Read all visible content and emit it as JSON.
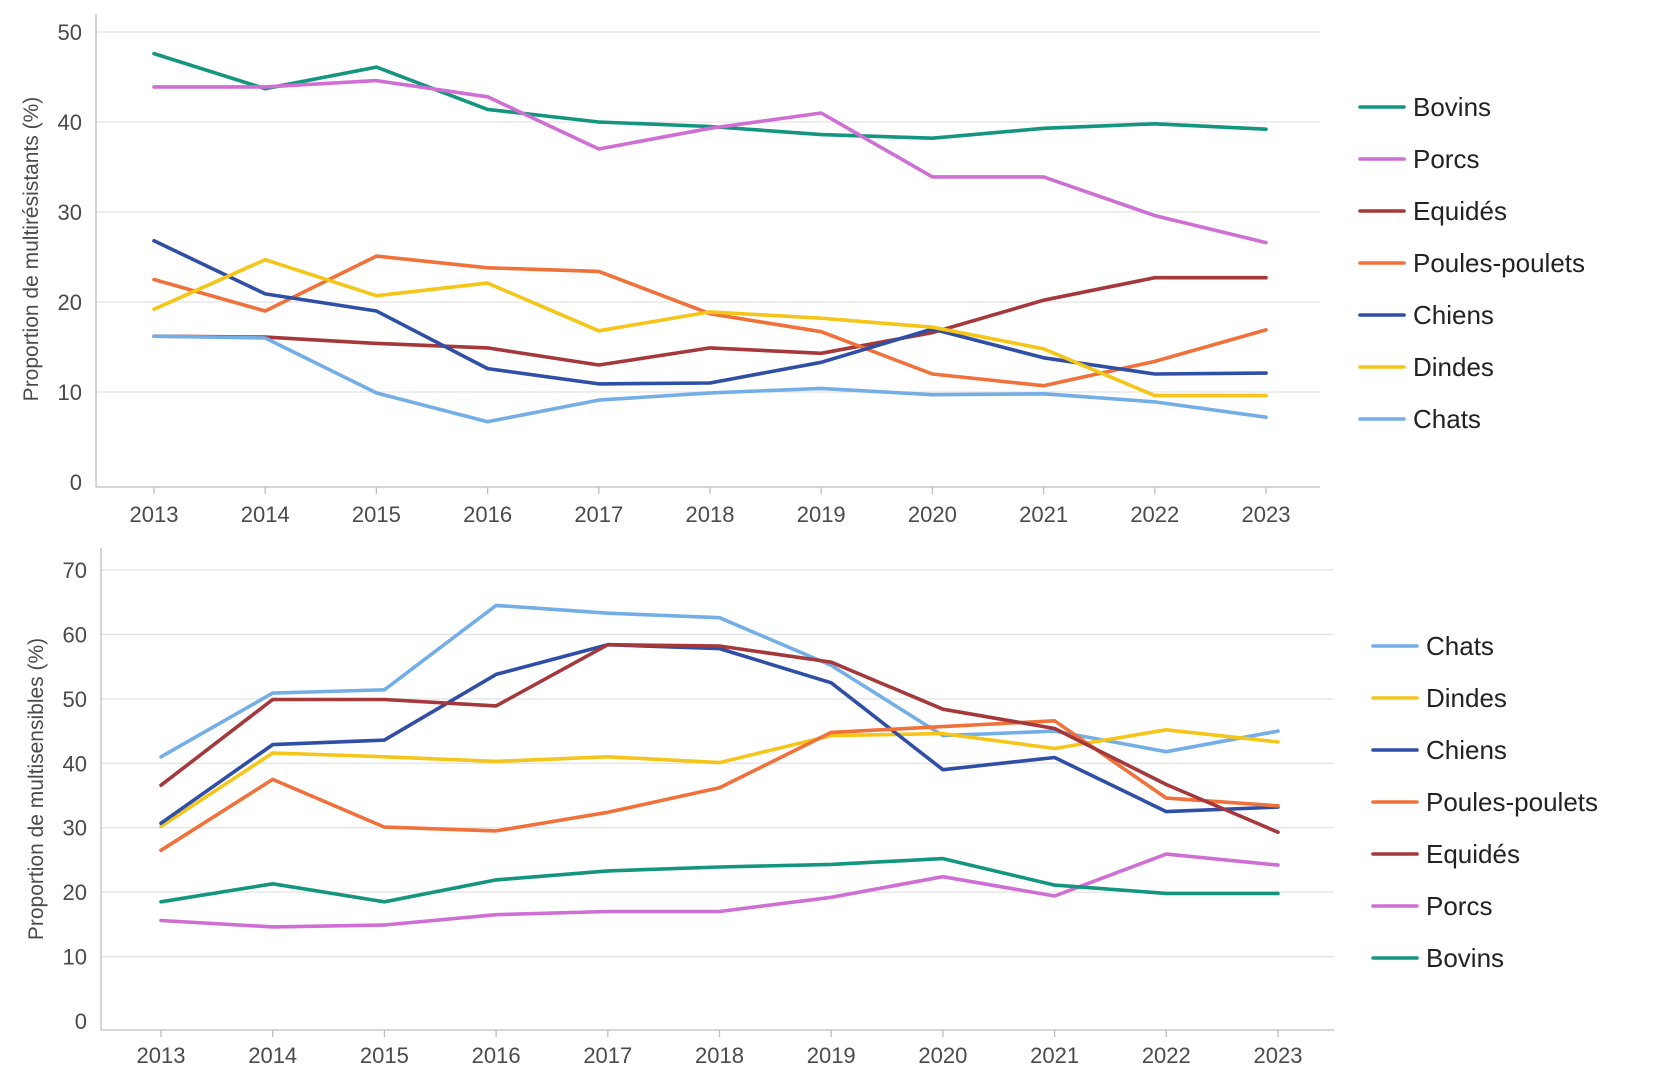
{
  "colors": {
    "Bovins": "#14957f",
    "Porcs": "#cf6fd4",
    "Equidés": "#a5383a",
    "Poules-poulets": "#f0713a",
    "Chiens": "#2f4fa6",
    "Dindes": "#f5c518",
    "Chats": "#74aee6"
  },
  "chart_data": [
    {
      "type": "line",
      "ylabel": "Proportion de multirésistants (%)",
      "xlabel": "",
      "x": [
        2013,
        2014,
        2015,
        2016,
        2017,
        2018,
        2019,
        2020,
        2021,
        2022,
        2023
      ],
      "ylim": [
        0,
        50
      ],
      "yticks": [
        0,
        10,
        20,
        30,
        40,
        50
      ],
      "grid": "horizontal",
      "legend_position": "right",
      "legend_order": [
        "Bovins",
        "Porcs",
        "Equidés",
        "Poules-poulets",
        "Chiens",
        "Dindes",
        "Chats"
      ],
      "series": [
        {
          "name": "Bovins",
          "values": [
            47.6,
            43.7,
            46.1,
            41.4,
            40.0,
            39.5,
            38.6,
            38.2,
            39.3,
            39.8,
            39.2
          ]
        },
        {
          "name": "Porcs",
          "values": [
            43.9,
            43.9,
            44.6,
            42.8,
            37.0,
            39.3,
            41.0,
            33.9,
            33.9,
            29.6,
            26.6
          ]
        },
        {
          "name": "Equidés",
          "values": [
            16.2,
            16.1,
            15.4,
            14.9,
            13.0,
            14.9,
            14.3,
            16.6,
            20.2,
            22.7,
            22.7
          ]
        },
        {
          "name": "Poules-poulets",
          "values": [
            22.5,
            19.0,
            25.1,
            23.8,
            23.4,
            18.7,
            16.7,
            12.0,
            10.7,
            13.4,
            16.9
          ]
        },
        {
          "name": "Chiens",
          "values": [
            26.8,
            20.9,
            19.0,
            12.6,
            10.9,
            11.0,
            13.3,
            17.0,
            13.8,
            12.0,
            12.1
          ]
        },
        {
          "name": "Dindes",
          "values": [
            19.2,
            24.7,
            20.7,
            22.1,
            16.8,
            18.9,
            18.2,
            17.2,
            14.8,
            9.6,
            9.6
          ]
        },
        {
          "name": "Chats",
          "values": [
            16.2,
            16.0,
            9.9,
            6.7,
            9.1,
            9.9,
            10.4,
            9.7,
            9.8,
            8.9,
            7.2
          ]
        }
      ]
    },
    {
      "type": "line",
      "ylabel": "Proportion de multisensibles (%)",
      "xlabel": "",
      "x": [
        2013,
        2014,
        2015,
        2016,
        2017,
        2018,
        2019,
        2020,
        2021,
        2022,
        2023
      ],
      "ylim": [
        0,
        70
      ],
      "yticks": [
        0,
        10,
        20,
        30,
        40,
        50,
        60,
        70
      ],
      "grid": "horizontal",
      "legend_position": "right",
      "legend_order": [
        "Chats",
        "Dindes",
        "Chiens",
        "Poules-poulets",
        "Equidés",
        "Porcs",
        "Bovins"
      ],
      "series": [
        {
          "name": "Chats",
          "values": [
            41.0,
            50.9,
            51.4,
            64.5,
            63.3,
            62.6,
            55.2,
            44.3,
            45.0,
            41.8,
            45.0
          ]
        },
        {
          "name": "Dindes",
          "values": [
            30.2,
            41.6,
            41.0,
            40.3,
            41.0,
            40.1,
            44.3,
            44.6,
            42.3,
            45.2,
            43.3
          ]
        },
        {
          "name": "Chiens",
          "values": [
            30.7,
            42.9,
            43.6,
            53.8,
            58.4,
            57.8,
            52.5,
            39.0,
            40.9,
            32.5,
            33.2
          ]
        },
        {
          "name": "Poules-poulets",
          "values": [
            26.5,
            37.5,
            30.1,
            29.5,
            32.4,
            36.2,
            44.8,
            45.7,
            46.6,
            34.6,
            33.4
          ]
        },
        {
          "name": "Equidés",
          "values": [
            36.6,
            49.9,
            49.9,
            48.9,
            58.4,
            58.2,
            55.7,
            48.4,
            45.4,
            36.7,
            29.3
          ]
        },
        {
          "name": "Porcs",
          "values": [
            15.6,
            14.6,
            14.9,
            16.5,
            17.0,
            17.0,
            19.2,
            22.4,
            19.4,
            25.9,
            24.2
          ]
        },
        {
          "name": "Bovins",
          "values": [
            18.5,
            21.3,
            18.5,
            21.9,
            23.3,
            23.9,
            24.3,
            25.2,
            21.1,
            19.8,
            19.8
          ]
        }
      ]
    }
  ]
}
